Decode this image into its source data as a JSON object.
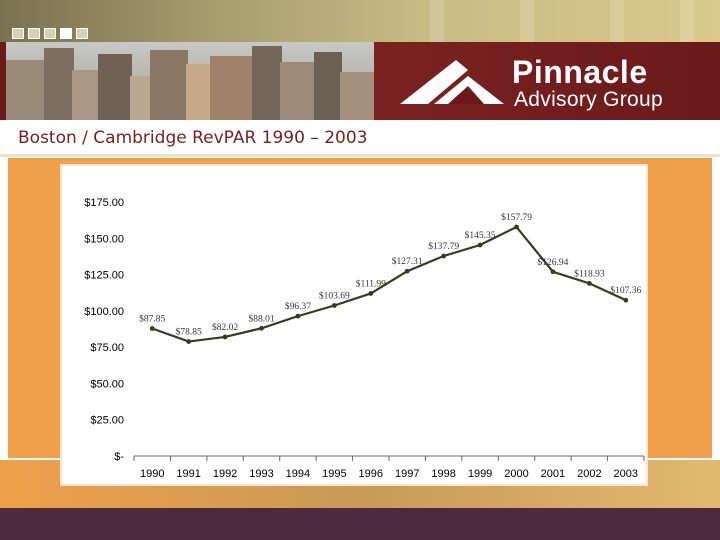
{
  "slide": {
    "title": "Boston / Cambridge RevPAR 1990 – 2003"
  },
  "brand": {
    "name": "Pinnacle",
    "sub": "Advisory Group"
  },
  "colors": {
    "maroon": "#6b1b1b",
    "orange": "#f0a04a",
    "line": "#3a3a1f",
    "footer": "#4e2b3c"
  },
  "chart_data": {
    "type": "line",
    "title": "",
    "xlabel": "",
    "ylabel": "",
    "ylim": [
      0,
      175
    ],
    "y_ticks": [
      {
        "value": 175,
        "label": "$175.00"
      },
      {
        "value": 150,
        "label": "$150.00"
      },
      {
        "value": 125,
        "label": "$125.00"
      },
      {
        "value": 100,
        "label": "$100.00"
      },
      {
        "value": 75,
        "label": "$75.00"
      },
      {
        "value": 50,
        "label": "$50.00"
      },
      {
        "value": 25,
        "label": "$25.00"
      },
      {
        "value": 0,
        "label": "$-"
      }
    ],
    "categories": [
      "1990",
      "1991",
      "1992",
      "1993",
      "1994",
      "1995",
      "1996",
      "1997",
      "1998",
      "1999",
      "2000",
      "2001",
      "2002",
      "2003"
    ],
    "series": [
      {
        "values": [
          87.85,
          78.85,
          82.02,
          88.01,
          96.37,
          103.69,
          111.99,
          127.31,
          137.79,
          145.35,
          157.79,
          126.94,
          118.93,
          107.36
        ],
        "labels": [
          "$87.85",
          "$78.85",
          "$82.02",
          "$88.01",
          "$96.37",
          "$103.69",
          "$111.99",
          "$127.31",
          "$137.79",
          "$145.35",
          "$157.79",
          "$126.94",
          "$118.93",
          "$107.36"
        ]
      }
    ],
    "grid": false,
    "legend": "none"
  }
}
